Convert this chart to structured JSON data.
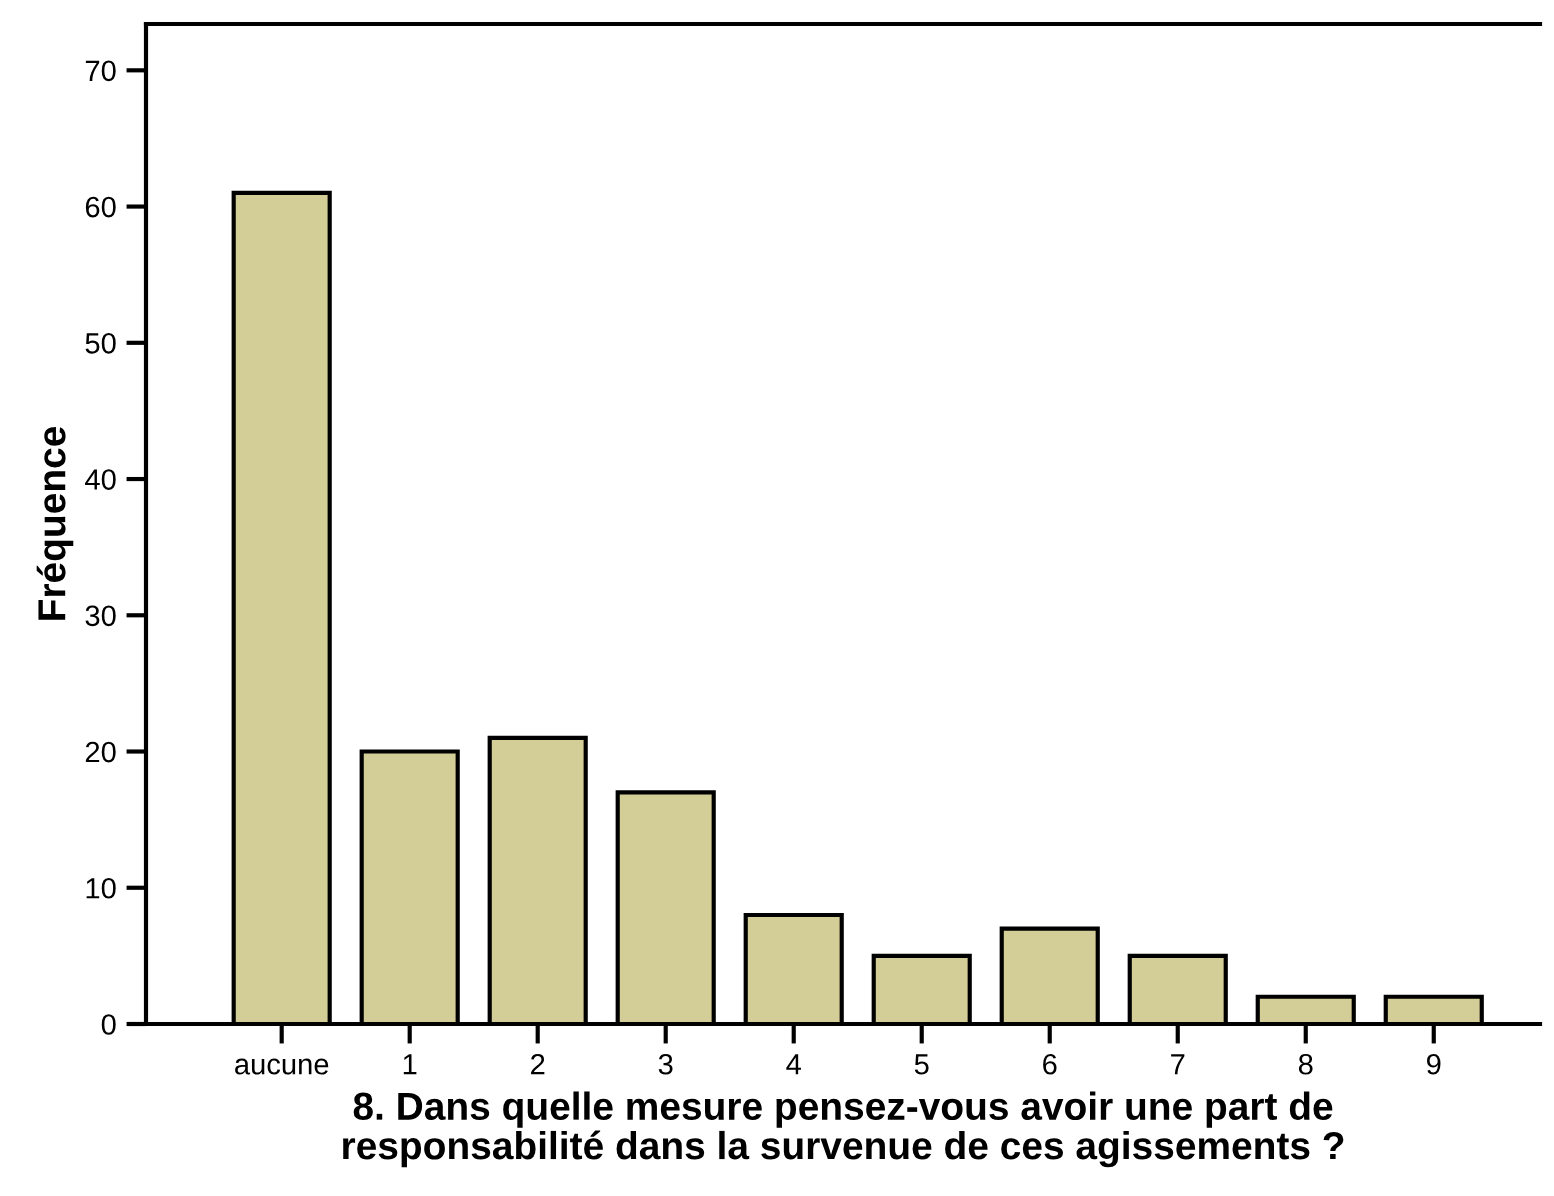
{
  "chart_data": {
    "type": "bar",
    "xlabel": "8. Dans quelle mesure pensez-vous avoir une part de\nresponsabilité dans la survenue de ces agissements ?",
    "ylabel": "Fréquence",
    "categories": [
      "aucune",
      "1",
      "2",
      "3",
      "4",
      "5",
      "6",
      "7",
      "8",
      "9"
    ],
    "values": [
      61,
      20,
      21,
      17,
      8,
      5,
      7,
      5,
      2,
      2
    ],
    "color": "#d3cd97",
    "ylim": [
      0,
      73.4
    ],
    "yticks": [
      0,
      10,
      20,
      30,
      40,
      50,
      60,
      70
    ],
    "grid": false
  }
}
